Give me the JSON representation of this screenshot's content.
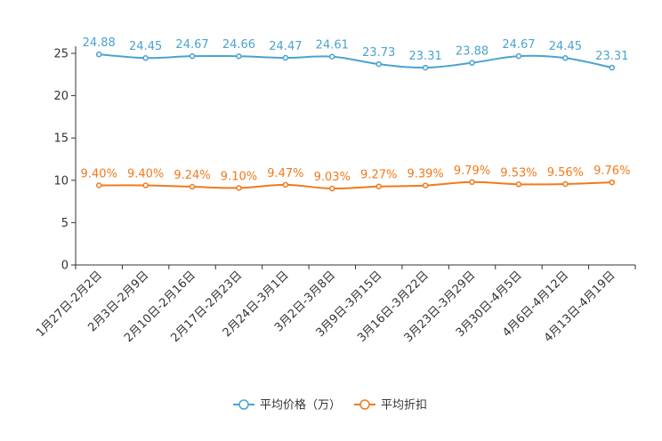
{
  "chart_data": {
    "type": "line",
    "categories": [
      "1月27日-2月2日",
      "2月3日-2月9日",
      "2月10日-2月16日",
      "2月17日-2月23日",
      "2月24日-3月1日",
      "3月2日-3月8日",
      "3月9日-3月15日",
      "3月16日-3月22日",
      "3月23日-3月29日",
      "3月30日-4月5日",
      "4月6日-4月12日",
      "4月13日-4月19日"
    ],
    "ylim": [
      0,
      25
    ],
    "yticks": [
      0,
      5,
      10,
      15,
      20,
      25
    ],
    "legend_position": "bottom-center",
    "series": [
      {
        "name": "平均价格（万）",
        "color": "#4aa3cf",
        "values": [
          24.88,
          24.45,
          24.67,
          24.66,
          24.47,
          24.61,
          23.73,
          23.31,
          23.88,
          24.67,
          24.45,
          23.31
        ],
        "labels": [
          "24.88",
          "24.45",
          "24.67",
          "24.66",
          "24.47",
          "24.61",
          "23.73",
          "23.31",
          "23.88",
          "24.67",
          "24.45",
          "23.31"
        ]
      },
      {
        "name": "平均折扣",
        "color": "#f07a1d",
        "values": [
          9.4,
          9.4,
          9.24,
          9.1,
          9.47,
          9.03,
          9.27,
          9.39,
          9.79,
          9.53,
          9.56,
          9.76
        ],
        "labels": [
          "9.40%",
          "9.40%",
          "9.24%",
          "9.10%",
          "9.47%",
          "9.03%",
          "9.27%",
          "9.39%",
          "9.79%",
          "9.53%",
          "9.56%",
          "9.76%"
        ]
      }
    ]
  }
}
